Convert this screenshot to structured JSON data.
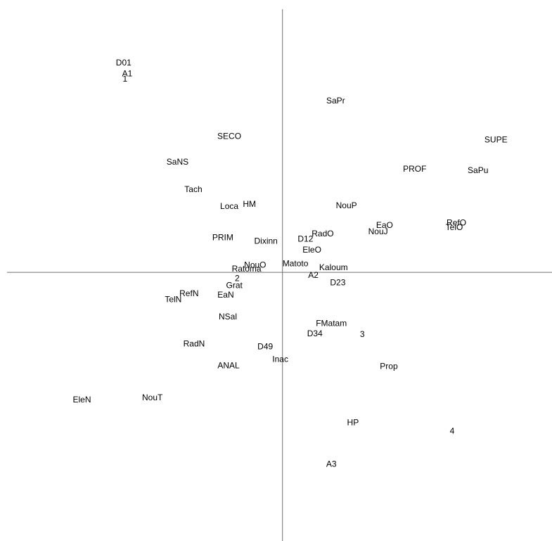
{
  "chart_data": {
    "type": "scatter",
    "title": "",
    "xlabel": "",
    "ylabel": "",
    "xlim": [
      -3.93,
      3.75
    ],
    "ylim": [
      -3.69,
      3.74
    ],
    "grid": false,
    "axes_color": "#6f6f6f",
    "label_color": "#000000",
    "points": [
      {
        "label": "D01",
        "x": -2.21,
        "y": 2.88
      },
      {
        "label": "A1",
        "x": -2.16,
        "y": 2.73
      },
      {
        "label": "1",
        "x": -2.19,
        "y": 2.66
      },
      {
        "label": "SaPr",
        "x": 0.74,
        "y": 2.36
      },
      {
        "label": "SECO",
        "x": -0.74,
        "y": 1.87
      },
      {
        "label": "SUPE",
        "x": 2.97,
        "y": 1.82
      },
      {
        "label": "SaNS",
        "x": -1.46,
        "y": 1.52
      },
      {
        "label": "PROF",
        "x": 1.84,
        "y": 1.42
      },
      {
        "label": "SaPu",
        "x": 2.72,
        "y": 1.4
      },
      {
        "label": "Tach",
        "x": -1.24,
        "y": 1.14
      },
      {
        "label": "HM",
        "x": -0.46,
        "y": 0.94
      },
      {
        "label": "Loca",
        "x": -0.74,
        "y": 0.91
      },
      {
        "label": "NouP",
        "x": 0.89,
        "y": 0.92
      },
      {
        "label": "RefO",
        "x": 2.42,
        "y": 0.68
      },
      {
        "label": "EaO",
        "x": 1.42,
        "y": 0.65
      },
      {
        "label": "TelO",
        "x": 2.39,
        "y": 0.62
      },
      {
        "label": "NouJ",
        "x": 1.33,
        "y": 0.56
      },
      {
        "label": "RadO",
        "x": 0.56,
        "y": 0.53
      },
      {
        "label": "D12",
        "x": 0.32,
        "y": 0.46
      },
      {
        "label": "PRIM",
        "x": -0.83,
        "y": 0.48
      },
      {
        "label": "Dixinn",
        "x": -0.23,
        "y": 0.43
      },
      {
        "label": "EleO",
        "x": 0.41,
        "y": 0.31
      },
      {
        "label": "Matoto",
        "x": 0.18,
        "y": 0.12
      },
      {
        "label": "NouO",
        "x": -0.38,
        "y": 0.1
      },
      {
        "label": "Kaloum",
        "x": 0.71,
        "y": 0.07
      },
      {
        "label": "Ratoma",
        "x": -0.5,
        "y": 0.05
      },
      {
        "label": "A2",
        "x": 0.43,
        "y": -0.04
      },
      {
        "label": "2",
        "x": -0.63,
        "y": -0.08
      },
      {
        "label": "D23",
        "x": 0.77,
        "y": -0.14
      },
      {
        "label": "Grat",
        "x": -0.67,
        "y": -0.18
      },
      {
        "label": "RefN",
        "x": -1.3,
        "y": -0.29
      },
      {
        "label": "EaN",
        "x": -0.79,
        "y": -0.31
      },
      {
        "label": "TelN",
        "x": -1.52,
        "y": -0.37
      },
      {
        "label": "NSal",
        "x": -0.76,
        "y": -0.61
      },
      {
        "label": "FMatam",
        "x": 0.68,
        "y": -0.7
      },
      {
        "label": "D34",
        "x": 0.45,
        "y": -0.84
      },
      {
        "label": "3",
        "x": 1.11,
        "y": -0.85
      },
      {
        "label": "RadN",
        "x": -1.23,
        "y": -0.98
      },
      {
        "label": "D49",
        "x": -0.24,
        "y": -1.02
      },
      {
        "label": "Inac",
        "x": -0.03,
        "y": -1.19
      },
      {
        "label": "Prop",
        "x": 1.48,
        "y": -1.29
      },
      {
        "label": "ANAL",
        "x": -0.75,
        "y": -1.28
      },
      {
        "label": "NouT",
        "x": -1.81,
        "y": -1.72
      },
      {
        "label": "EleN",
        "x": -2.79,
        "y": -1.75
      },
      {
        "label": "HP",
        "x": 0.98,
        "y": -2.06
      },
      {
        "label": "4",
        "x": 2.36,
        "y": -2.18
      },
      {
        "label": "A3",
        "x": 0.68,
        "y": -2.63
      }
    ]
  }
}
